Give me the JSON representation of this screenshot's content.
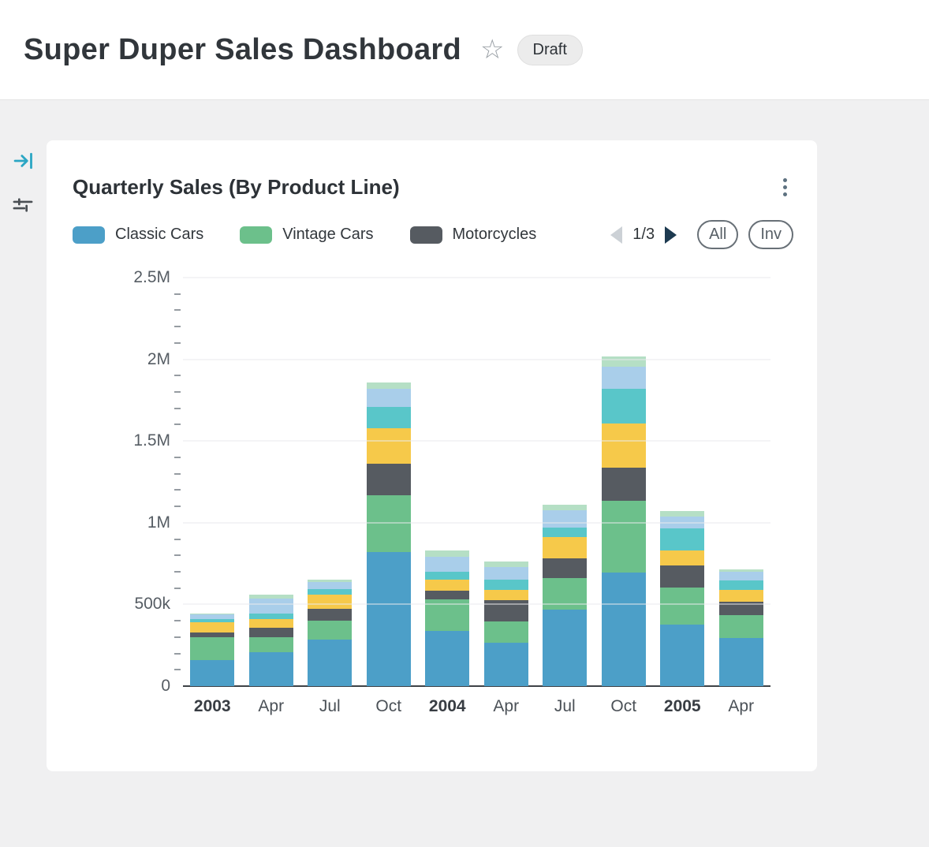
{
  "header": {
    "title": "Super Duper Sales Dashboard",
    "badge": "Draft"
  },
  "icons": {
    "header_star": "star-outline-icon",
    "sidebar": [
      "collapse-panel-icon",
      "filter-icon"
    ],
    "card_menu": "kebab-menu-icon",
    "pager_prev": "prev-arrow-icon",
    "pager_next": "next-arrow-icon"
  },
  "card": {
    "title": "Quarterly Sales (By Product Line)",
    "pager": {
      "label": "1/3"
    },
    "toggles": {
      "all": "All",
      "inv": "Inv"
    }
  },
  "colors": {
    "accent_teal": "#2ba6c4",
    "card_bg": "#ffffff",
    "page_bg": "#f0f0f1"
  },
  "chart_data": {
    "type": "bar",
    "stacked": true,
    "title": "Quarterly Sales (By Product Line)",
    "categories": [
      "2003",
      "Apr",
      "Jul",
      "Oct",
      "2004",
      "Apr",
      "Jul",
      "Oct",
      "2005",
      "Apr"
    ],
    "bold_categories": [
      "2003",
      "2004",
      "2005"
    ],
    "y_unit": "thousands",
    "ylim": [
      0,
      2500
    ],
    "ytick_values": [
      0,
      500,
      1000,
      1500,
      2000,
      2500
    ],
    "ytick_labels": [
      "0",
      "500k",
      "1M",
      "1.5M",
      "2M",
      "2.5M"
    ],
    "y_minor_step": 100,
    "grid": "horizontal",
    "legend_position": "top",
    "legend_page": "1/3",
    "series": [
      {
        "name": "Classic Cars",
        "color": "#4c9fc8",
        "in_legend": true,
        "values": [
          160,
          210,
          285,
          820,
          340,
          265,
          470,
          695,
          375,
          295
        ]
      },
      {
        "name": "Vintage Cars",
        "color": "#6cc08b",
        "in_legend": true,
        "values": [
          140,
          90,
          115,
          350,
          190,
          130,
          190,
          440,
          230,
          140
        ]
      },
      {
        "name": "Motorcycles",
        "color": "#565b61",
        "in_legend": true,
        "values": [
          30,
          55,
          75,
          190,
          55,
          130,
          120,
          200,
          135,
          80
        ]
      },
      {
        "name": "",
        "color": "#f6c94a",
        "in_legend": false,
        "values": [
          60,
          55,
          85,
          220,
          65,
          65,
          130,
          270,
          90,
          75
        ]
      },
      {
        "name": "",
        "color": "#59c6c9",
        "in_legend": false,
        "values": [
          20,
          35,
          35,
          130,
          50,
          60,
          60,
          215,
          135,
          55
        ]
      },
      {
        "name": "",
        "color": "#a9ceea",
        "in_legend": false,
        "values": [
          30,
          90,
          40,
          110,
          90,
          80,
          105,
          135,
          75,
          55
        ]
      },
      {
        "name": "",
        "color": "#b5dfc5",
        "in_legend": false,
        "values": [
          5,
          25,
          15,
          40,
          40,
          35,
          35,
          65,
          30,
          15
        ]
      }
    ],
    "totals": [
      445,
      560,
      650,
      1860,
      830,
      765,
      1110,
      2020,
      1070,
      715
    ]
  }
}
